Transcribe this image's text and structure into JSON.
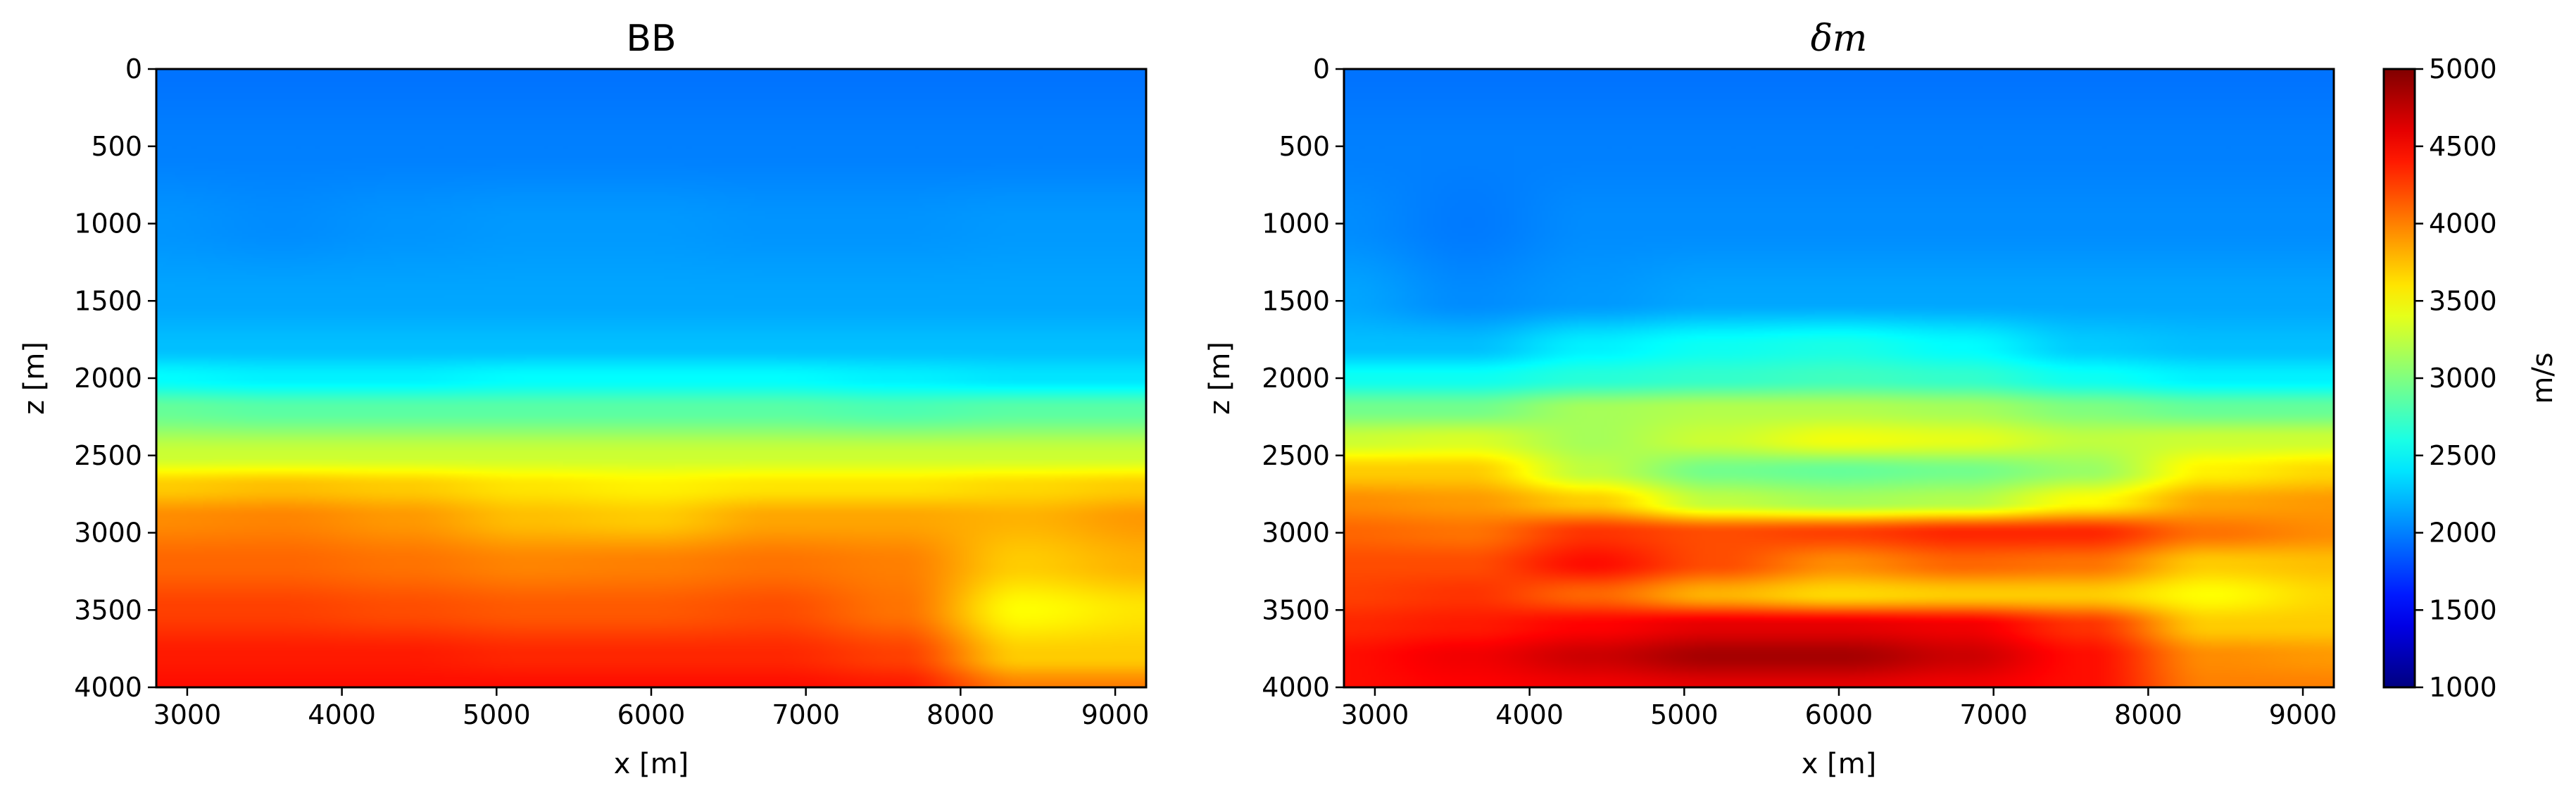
{
  "chart_data": [
    {
      "type": "heatmap",
      "title": "BB",
      "xlabel": "x [m]",
      "ylabel": "z [m]",
      "xlim": [
        2800,
        9200
      ],
      "ylim": [
        4000,
        0
      ],
      "xticks": [
        3000,
        4000,
        5000,
        6000,
        7000,
        8000,
        9000
      ],
      "yticks": [
        0,
        500,
        1000,
        1500,
        2000,
        2500,
        3000,
        3500,
        4000
      ],
      "colormap": "jet",
      "clim": [
        1000,
        5000
      ],
      "x": [
        2800,
        3600,
        4400,
        5200,
        6000,
        6800,
        7600,
        8400,
        9200
      ],
      "z": [
        0,
        500,
        1000,
        1500,
        1800,
        2000,
        2200,
        2500,
        2700,
        2900,
        3200,
        3500,
        3800,
        4000
      ],
      "values": [
        [
          1950,
          1950,
          1950,
          1950,
          1950,
          1950,
          1950,
          1950,
          1950
        ],
        [
          2000,
          2000,
          2000,
          2000,
          2000,
          2000,
          2000,
          2000,
          2000
        ],
        [
          2080,
          2050,
          2080,
          2100,
          2100,
          2080,
          2080,
          2100,
          2100
        ],
        [
          2150,
          2150,
          2150,
          2150,
          2150,
          2150,
          2150,
          2150,
          2150
        ],
        [
          2250,
          2250,
          2250,
          2250,
          2250,
          2250,
          2250,
          2250,
          2250
        ],
        [
          2500,
          2450,
          2450,
          2500,
          2500,
          2500,
          2450,
          2400,
          2400
        ],
        [
          2900,
          2850,
          2850,
          2850,
          2850,
          2850,
          2800,
          2850,
          2850
        ],
        [
          3300,
          3300,
          3300,
          3300,
          3300,
          3300,
          3300,
          3300,
          3300
        ],
        [
          3700,
          3750,
          3700,
          3600,
          3550,
          3600,
          3600,
          3650,
          3700
        ],
        [
          3950,
          3980,
          3900,
          3750,
          3700,
          3850,
          3850,
          3800,
          3900
        ],
        [
          4100,
          4100,
          4050,
          3980,
          4000,
          4050,
          4000,
          3700,
          3800
        ],
        [
          4250,
          4250,
          4200,
          4150,
          4150,
          4200,
          4050,
          3500,
          3600
        ],
        [
          4400,
          4400,
          4400,
          4350,
          4350,
          4350,
          4250,
          3700,
          3700
        ],
        [
          4450,
          4450,
          4450,
          4450,
          4450,
          4450,
          4400,
          4000,
          4000
        ]
      ]
    },
    {
      "type": "heatmap",
      "title": "δm",
      "xlabel": "x [m]",
      "ylabel": "z [m]",
      "xlim": [
        2800,
        9200
      ],
      "ylim": [
        4000,
        0
      ],
      "xticks": [
        3000,
        4000,
        5000,
        6000,
        7000,
        8000,
        9000
      ],
      "yticks": [
        0,
        500,
        1000,
        1500,
        2000,
        2500,
        3000,
        3500,
        4000
      ],
      "colormap": "jet",
      "clim": [
        1000,
        5000
      ],
      "colorbar": {
        "label": "m/s",
        "ticks": [
          1000,
          1500,
          2000,
          2500,
          3000,
          3500,
          4000,
          4500,
          5000
        ]
      },
      "x": [
        2800,
        3600,
        4400,
        5200,
        6000,
        6800,
        7600,
        8400,
        9200
      ],
      "z": [
        0,
        500,
        1000,
        1500,
        1800,
        2000,
        2200,
        2400,
        2600,
        2800,
        3000,
        3200,
        3400,
        3600,
        3800,
        4000
      ],
      "values": [
        [
          1950,
          1950,
          1950,
          1950,
          1950,
          1950,
          1950,
          1950,
          1950
        ],
        [
          2000,
          2000,
          2000,
          2000,
          2000,
          2000,
          2000,
          2000,
          2000
        ],
        [
          2050,
          1980,
          2050,
          2050,
          2050,
          2050,
          2050,
          2050,
          2050
        ],
        [
          2150,
          2050,
          2100,
          2150,
          2150,
          2150,
          2150,
          2150,
          2150
        ],
        [
          2250,
          2250,
          2450,
          2550,
          2600,
          2500,
          2300,
          2250,
          2250
        ],
        [
          2550,
          2550,
          2650,
          2700,
          2750,
          2700,
          2550,
          2450,
          2450
        ],
        [
          2950,
          2950,
          3150,
          3200,
          3200,
          3150,
          3000,
          2900,
          2900
        ],
        [
          3300,
          3350,
          3150,
          3300,
          3450,
          3400,
          3250,
          3300,
          3300
        ],
        [
          3700,
          3700,
          3250,
          2950,
          2900,
          2950,
          3100,
          3550,
          3650
        ],
        [
          3950,
          3900,
          3700,
          3250,
          3150,
          3200,
          3500,
          3850,
          3900
        ],
        [
          4100,
          4050,
          4300,
          4200,
          4250,
          4350,
          4350,
          4050,
          3950
        ],
        [
          4200,
          4200,
          4450,
          4200,
          3950,
          4100,
          4050,
          3700,
          3750
        ],
        [
          4250,
          4300,
          4100,
          3800,
          3650,
          3700,
          3700,
          3500,
          3650
        ],
        [
          4350,
          4400,
          4500,
          4600,
          4600,
          4550,
          4300,
          3700,
          3700
        ],
        [
          4450,
          4550,
          4700,
          4850,
          4850,
          4700,
          4450,
          3950,
          3900
        ],
        [
          4450,
          4500,
          4550,
          4600,
          4600,
          4550,
          4450,
          4000,
          4000
        ]
      ]
    }
  ]
}
